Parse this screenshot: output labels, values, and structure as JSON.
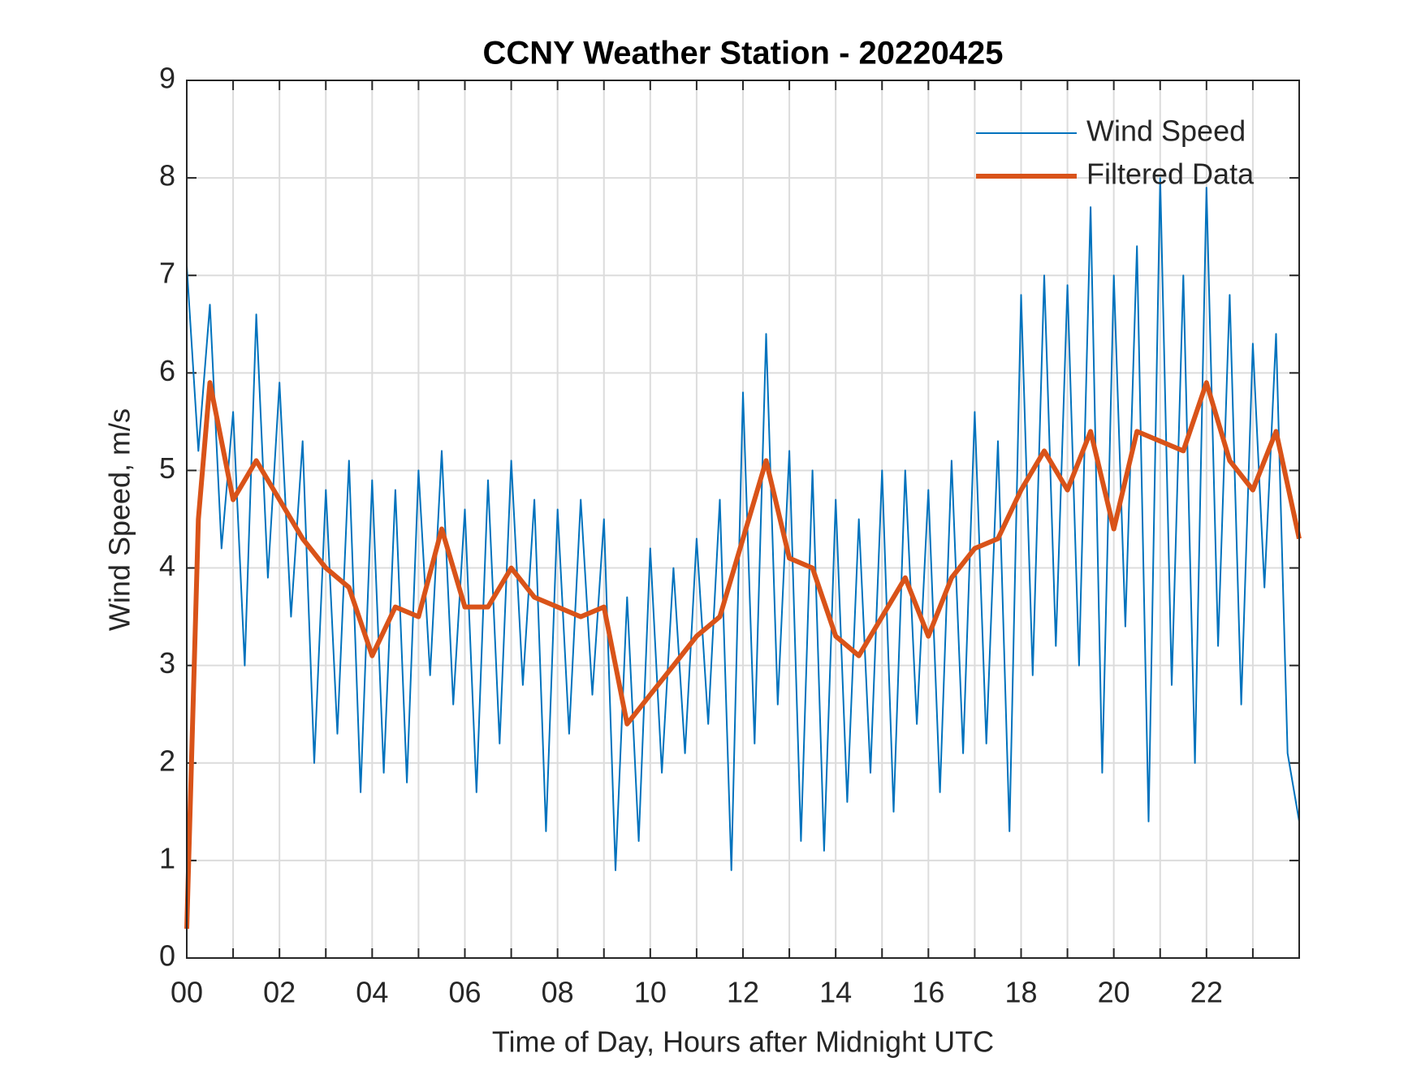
{
  "chart_data": {
    "type": "line",
    "title": "CCNY Weather Station - 20220425",
    "xlabel": "Time of Day, Hours after Midnight UTC",
    "ylabel": "Wind Speed, m/s",
    "xlim": [
      0,
      24
    ],
    "ylim": [
      0,
      9
    ],
    "xticks": [
      {
        "value": 0,
        "label": "00"
      },
      {
        "value": 2,
        "label": "02"
      },
      {
        "value": 4,
        "label": "04"
      },
      {
        "value": 6,
        "label": "06"
      },
      {
        "value": 8,
        "label": "08"
      },
      {
        "value": 10,
        "label": "10"
      },
      {
        "value": 12,
        "label": "12"
      },
      {
        "value": 14,
        "label": "14"
      },
      {
        "value": 16,
        "label": "16"
      },
      {
        "value": 18,
        "label": "18"
      },
      {
        "value": 20,
        "label": "20"
      },
      {
        "value": 22,
        "label": "22"
      }
    ],
    "xminor_ticks": [
      1,
      3,
      5,
      7,
      9,
      11,
      13,
      15,
      17,
      19,
      21,
      23
    ],
    "yticks": [
      0,
      1,
      2,
      3,
      4,
      5,
      6,
      7,
      8,
      9
    ],
    "grid": true,
    "legend": "upper right",
    "series": [
      {
        "name": "Wind Speed",
        "color": "#0072bd",
        "x": [
          0,
          0.25,
          0.5,
          0.75,
          1,
          1.25,
          1.5,
          1.75,
          2,
          2.25,
          2.5,
          2.75,
          3,
          3.25,
          3.5,
          3.75,
          4,
          4.25,
          4.5,
          4.75,
          5,
          5.25,
          5.5,
          5.75,
          6,
          6.25,
          6.5,
          6.75,
          7,
          7.25,
          7.5,
          7.75,
          8,
          8.25,
          8.5,
          8.75,
          9,
          9.25,
          9.5,
          9.75,
          10,
          10.25,
          10.5,
          10.75,
          11,
          11.25,
          11.5,
          11.75,
          12,
          12.25,
          12.5,
          12.75,
          13,
          13.25,
          13.5,
          13.75,
          14,
          14.25,
          14.5,
          14.75,
          15,
          15.25,
          15.5,
          15.75,
          16,
          16.25,
          16.5,
          16.75,
          17,
          17.25,
          17.5,
          17.75,
          18,
          18.25,
          18.5,
          18.75,
          19,
          19.25,
          19.5,
          19.75,
          20,
          20.25,
          20.5,
          20.75,
          21,
          21.25,
          21.5,
          21.75,
          22,
          22.25,
          22.5,
          22.75,
          23,
          23.25,
          23.5,
          23.75,
          24
        ],
        "values": [
          7.1,
          5.2,
          6.7,
          4.2,
          5.6,
          3.0,
          6.6,
          3.9,
          5.9,
          3.5,
          5.3,
          2.0,
          4.8,
          2.3,
          5.1,
          1.7,
          4.9,
          1.9,
          4.8,
          1.8,
          5.0,
          2.9,
          5.2,
          2.6,
          4.6,
          1.7,
          4.9,
          2.2,
          5.1,
          2.8,
          4.7,
          1.3,
          4.6,
          2.3,
          4.7,
          2.7,
          4.5,
          0.9,
          3.7,
          1.2,
          4.2,
          1.9,
          4.0,
          2.1,
          4.3,
          2.4,
          4.7,
          0.9,
          5.8,
          2.2,
          6.4,
          2.6,
          5.2,
          1.2,
          5.0,
          1.1,
          4.7,
          1.6,
          4.5,
          1.9,
          5.0,
          1.5,
          5.0,
          2.4,
          4.8,
          1.7,
          5.1,
          2.1,
          5.6,
          2.2,
          5.3,
          1.3,
          6.8,
          2.9,
          7.0,
          3.2,
          6.9,
          3.0,
          7.7,
          1.9,
          7.0,
          3.4,
          7.3,
          1.4,
          8.0,
          2.8,
          7.0,
          2.0,
          7.9,
          3.2,
          6.8,
          2.6,
          6.3,
          3.8,
          6.4,
          2.1,
          1.4
        ]
      },
      {
        "name": "Filtered Data",
        "color": "#d95319",
        "x": [
          0,
          0.25,
          0.5,
          1,
          1.5,
          2,
          2.5,
          3,
          3.5,
          4,
          4.5,
          5,
          5.5,
          6,
          6.5,
          7,
          7.5,
          8,
          8.5,
          9,
          9.5,
          10,
          10.5,
          11,
          11.5,
          12,
          12.5,
          13,
          13.5,
          14,
          14.5,
          15,
          15.5,
          16,
          16.5,
          17,
          17.5,
          18,
          18.5,
          19,
          19.5,
          20,
          20.5,
          21,
          21.5,
          22,
          22.5,
          23,
          23.5,
          24
        ],
        "values": [
          0.3,
          4.5,
          5.9,
          4.7,
          5.1,
          4.7,
          4.3,
          4.0,
          3.8,
          3.1,
          3.6,
          3.5,
          4.4,
          3.6,
          3.6,
          4.0,
          3.7,
          3.6,
          3.5,
          3.6,
          2.4,
          2.7,
          3.0,
          3.3,
          3.5,
          4.3,
          5.1,
          4.1,
          4.0,
          3.3,
          3.1,
          3.5,
          3.9,
          3.3,
          3.9,
          4.2,
          4.3,
          4.8,
          5.2,
          4.8,
          5.4,
          4.4,
          5.4,
          5.3,
          5.2,
          5.9,
          5.1,
          4.8,
          5.4,
          4.3
        ]
      }
    ]
  }
}
